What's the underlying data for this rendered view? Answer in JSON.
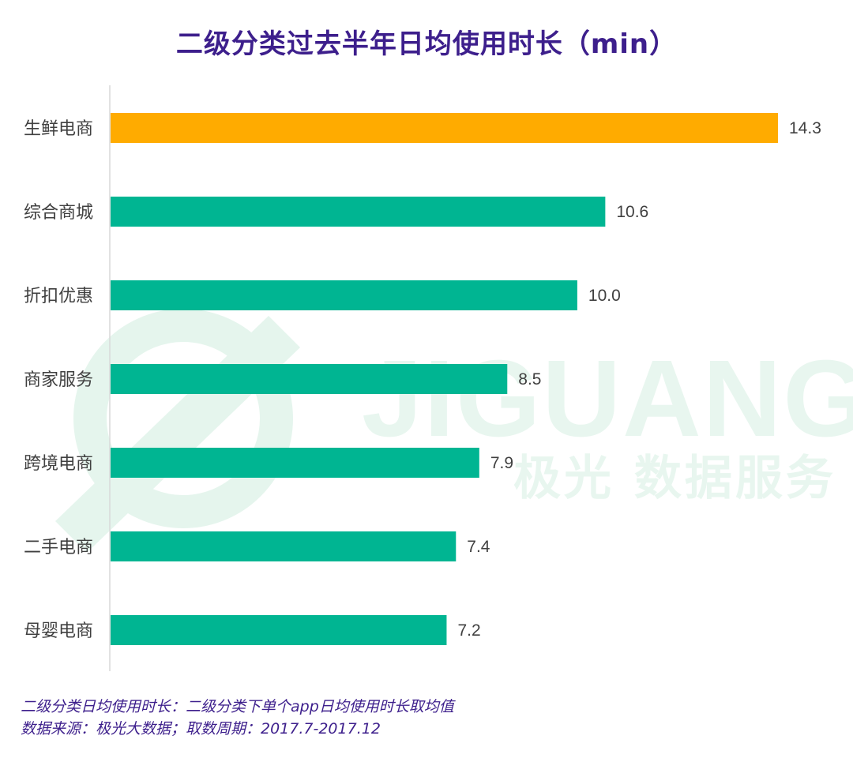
{
  "title": "二级分类过去半年日均使用时长（min）",
  "watermark": {
    "en": "JIGUANG",
    "cn": "极光 数据服务",
    "color": "#e8f6ef",
    "ring_color": "#e3f4ec"
  },
  "colors": {
    "highlight": "#ffab00",
    "bar": "#00b592",
    "axis": "#d9d9d9",
    "label": "#404040"
  },
  "chart_data": {
    "type": "bar",
    "orientation": "horizontal",
    "title": "二级分类过去半年日均使用时长（min）",
    "categories": [
      "生鲜电商",
      "综合商城",
      "折扣优惠",
      "商家服务",
      "跨境电商",
      "二手电商",
      "母婴电商"
    ],
    "values": [
      14.3,
      10.6,
      10.0,
      8.5,
      7.9,
      7.4,
      7.2
    ],
    "value_labels": [
      "14.3",
      "10.6",
      "10.0",
      "8.5",
      "7.9",
      "7.4",
      "7.2"
    ],
    "highlight_index": 0,
    "xlim": [
      0,
      14.3
    ],
    "grid": false,
    "legend": "none"
  },
  "footnotes": {
    "line1": "二级分类日均使用时长：二级分类下单个app日均使用时长取均值",
    "line2": "数据来源：极光大数据；取数周期：2017.7-2017.12"
  }
}
